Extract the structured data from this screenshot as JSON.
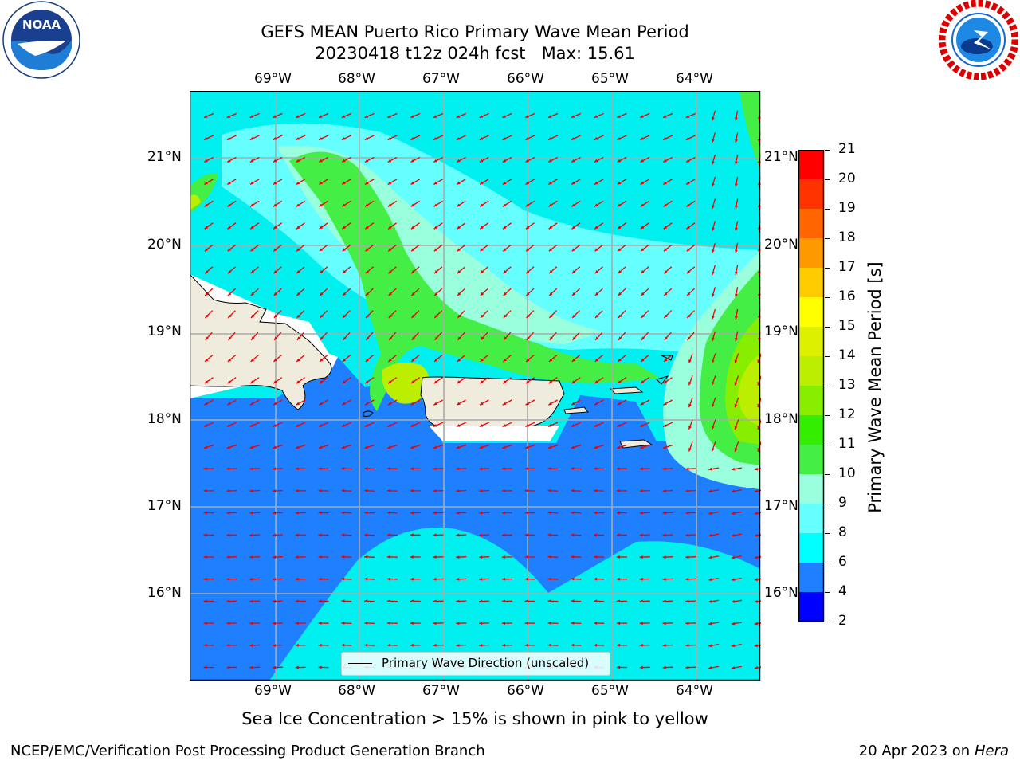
{
  "header": {
    "title": "GEFS MEAN Puerto Rico Primary Wave Mean Period",
    "subtitle": "20230418 t12z 024h fcst   Max: 15.61"
  },
  "logos": {
    "left_text": "NOAA",
    "right_text": "NATIONAL WEATHER SERVICE"
  },
  "map": {
    "lon_ticks": [
      "69°W",
      "68°W",
      "67°W",
      "66°W",
      "65°W",
      "64°W"
    ],
    "lat_ticks": [
      "21°N",
      "20°N",
      "19°N",
      "18°N",
      "17°N",
      "16°N"
    ],
    "legend": "Primary Wave Direction (unscaled)",
    "arrow_color": "#ee0000",
    "coast_color": "#efecdd"
  },
  "colorbar": {
    "label": "Primary Wave Mean Period [s]",
    "ticks": [
      "21",
      "20",
      "19",
      "18",
      "17",
      "16",
      "15",
      "14",
      "13",
      "12",
      "11",
      "10",
      "9",
      "8",
      "6",
      "4",
      "2"
    ],
    "colors": [
      "#ff0000",
      "#ff3300",
      "#ff6600",
      "#ff9900",
      "#ffcc00",
      "#ffff00",
      "#ddf000",
      "#bbee00",
      "#88ee00",
      "#33ee00",
      "#44ee44",
      "#99ffdd",
      "#66ffff",
      "#00ffff",
      "#1e7fff",
      "#0000ff"
    ]
  },
  "caption": "Sea Ice Concentration > 15% is shown in pink to yellow",
  "footer": {
    "left": "NCEP/EMC/Verification Post Processing Product Generation Branch",
    "date": "20 Apr 2023 on ",
    "host": "Hera"
  }
}
